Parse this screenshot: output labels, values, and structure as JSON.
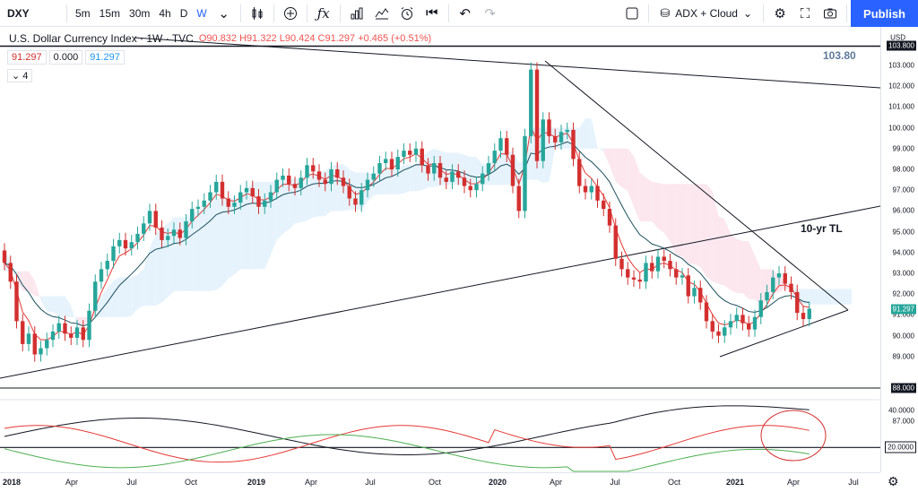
{
  "toolbar": {
    "symbol": "DXY",
    "intervals": [
      "5m",
      "15m",
      "30m",
      "4h",
      "D",
      "W"
    ],
    "active_interval": "W",
    "indicators_label": "ADX + Cloud",
    "publish_label": "Publish",
    "icons": [
      "chevron-down-icon",
      "candles-icon",
      "plus-circle-icon",
      "fx-icon",
      "bar-chart-icon",
      "indicators-icon",
      "alert-icon",
      "replay-icon",
      "undo-icon",
      "redo-icon",
      "square-icon",
      "gear-icon",
      "fullscreen-icon",
      "camera-icon"
    ]
  },
  "legend": {
    "title": "U.S. Dollar Currency Index · 1W · TVC",
    "ohlc": "O90.832 H91.322 L90.424 C91.297 +0.465 (+0.51%)",
    "val1": "91.297",
    "val2": "0.000",
    "val3": "91.297",
    "collapse": "4"
  },
  "annotations": {
    "price_label": "103.80",
    "tl_label": "10-yr TL"
  },
  "price_axis": {
    "unit": "USD",
    "ticks": [
      "103.000",
      "102.000",
      "101.000",
      "100.000",
      "99.000",
      "98.000",
      "97.000",
      "96.000",
      "95.000",
      "94.000",
      "93.000",
      "92.000",
      "91.000",
      "90.000",
      "89.000",
      "87.000"
    ],
    "badge_top": "103.800",
    "badge_current": "91.297",
    "badge_support": "88.000",
    "adx_ticks": [
      "40.0000"
    ],
    "adx_badge": "20.0000"
  },
  "time_axis": {
    "ticks": [
      "2018",
      "Apr",
      "Jul",
      "Oct",
      "2019",
      "Apr",
      "Jul",
      "Oct",
      "2020",
      "Apr",
      "Jul",
      "Oct",
      "2021",
      "Apr",
      "Jul"
    ]
  },
  "colors": {
    "up": "#26a69a",
    "down": "#d32f2f",
    "cloud_bear": "#fce4ec",
    "cloud_bull": "#e3f2fd",
    "adx": "#131722",
    "di_minus": "#e53935",
    "di_plus": "#4caf50"
  },
  "chart_data": {
    "type": "candlestick",
    "x_start": "2018",
    "x_end": "2021",
    "ylim": [
      87,
      104
    ],
    "closes": [
      93.5,
      92.6,
      90.7,
      89.6,
      90.1,
      89.1,
      89.4,
      89.8,
      90.2,
      90.6,
      90.1,
      89.9,
      90.4,
      89.8,
      91.2,
      92.6,
      93.2,
      93.6,
      94.3,
      94.6,
      94.2,
      94.5,
      94.9,
      95.4,
      96.0,
      95.2,
      94.6,
      94.8,
      95.1,
      94.7,
      95.5,
      96.1,
      96.2,
      96.5,
      96.9,
      97.4,
      96.6,
      96.2,
      96.4,
      96.9,
      97.1,
      96.7,
      96.2,
      96.5,
      96.9,
      97.5,
      97.7,
      97.3,
      97.1,
      97.6,
      98.2,
      97.9,
      97.5,
      97.3,
      98.0,
      97.6,
      97.2,
      96.6,
      96.3,
      97.0,
      97.5,
      97.8,
      98.3,
      98.5,
      98.0,
      98.6,
      98.9,
      98.7,
      99.0,
      98.2,
      97.8,
      98.3,
      97.6,
      97.4,
      97.9,
      97.6,
      97.2,
      97.0,
      97.3,
      97.8,
      98.3,
      98.9,
      99.5,
      98.7,
      97.2,
      96.0,
      99.6,
      102.8,
      98.4,
      100.4,
      99.6,
      99.3,
      99.8,
      99.9,
      98.5,
      97.2,
      96.9,
      97.2,
      96.5,
      96.1,
      95.3,
      93.7,
      93.2,
      92.8,
      92.7,
      92.6,
      93.5,
      93.1,
      93.8,
      93.6,
      93.2,
      92.8,
      92.9,
      91.9,
      92.3,
      91.6,
      90.7,
      90.2,
      90.0,
      90.4,
      90.7,
      91.0,
      90.6,
      90.3,
      90.9,
      91.7,
      92.1,
      92.8,
      93.0,
      92.5,
      92.1,
      91.1,
      90.8,
      91.297
    ],
    "resistance_price": 103.8,
    "support_price": 88.0,
    "adx_levels": [
      40,
      20
    ]
  }
}
